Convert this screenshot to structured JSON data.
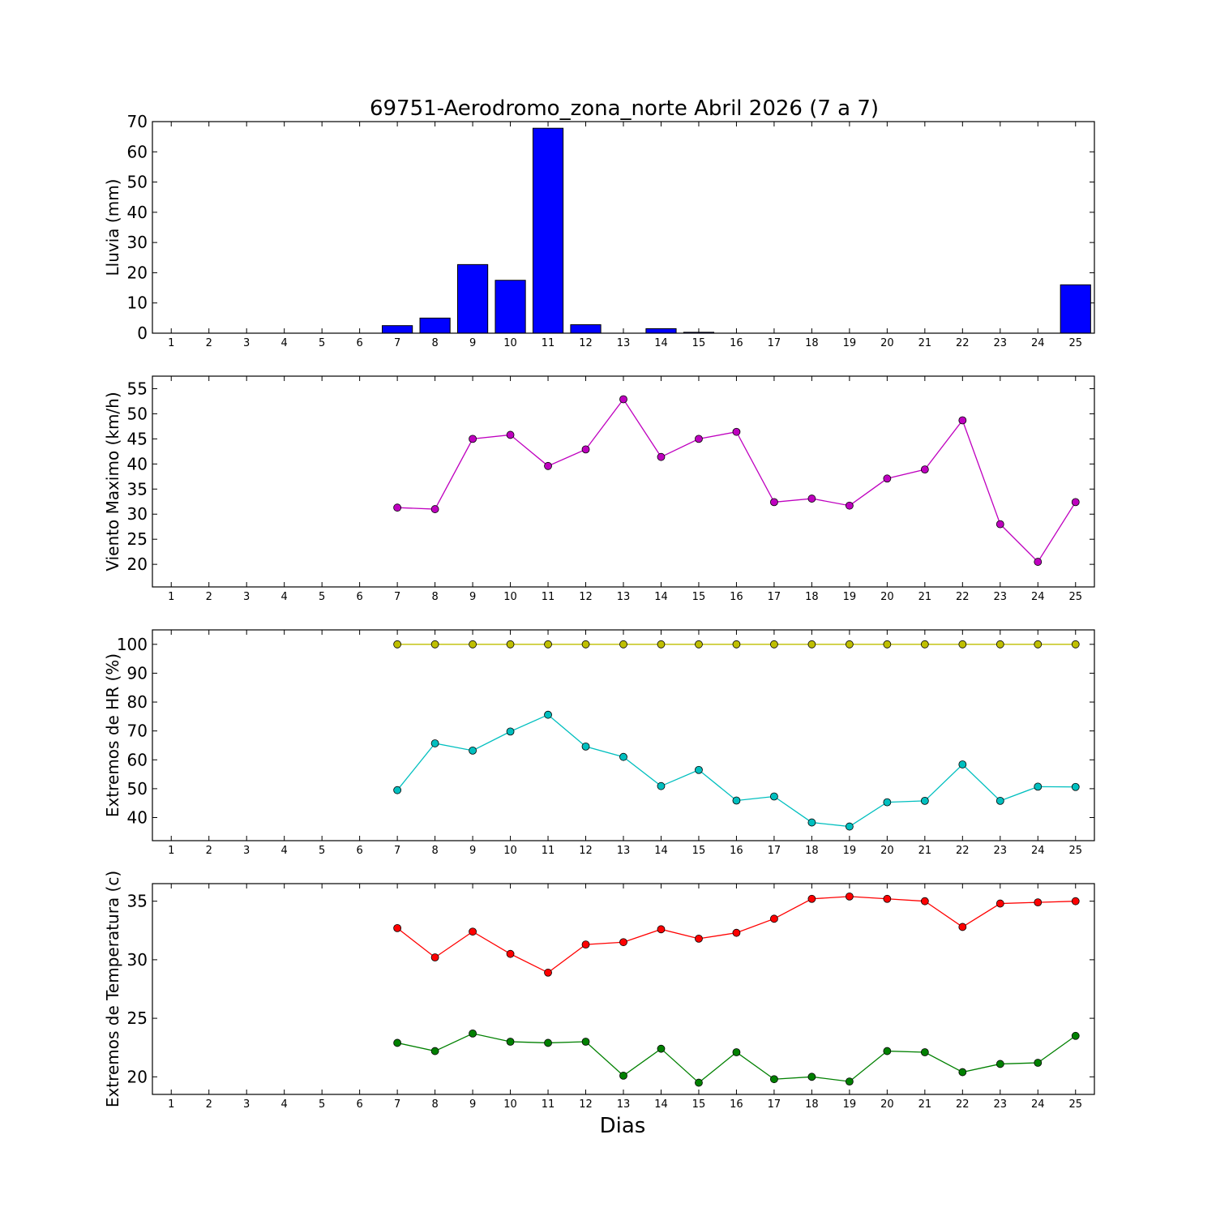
{
  "chart_data": [
    {
      "type": "bar",
      "title": "69751-Aerodromo_zona_norte Abril 2026  (7 a 7)",
      "ylabel": "Lluvia (mm)",
      "xlabel": "",
      "categories": [
        "1",
        "2",
        "3",
        "4",
        "5",
        "6",
        "7",
        "8",
        "9",
        "10",
        "11",
        "12",
        "13",
        "14",
        "15",
        "16",
        "17",
        "18",
        "19",
        "20",
        "21",
        "22",
        "23",
        "24",
        "25"
      ],
      "ylim": [
        0,
        70
      ],
      "yticks": [
        "0",
        "10",
        "20",
        "30",
        "40",
        "50",
        "60",
        "70"
      ],
      "series": [
        {
          "color": "#0000ff",
          "values": [
            0,
            0,
            0,
            0,
            0,
            0,
            2.5,
            5,
            22.7,
            17.5,
            67.8,
            2.8,
            0,
            1.5,
            0.3,
            0,
            0,
            0,
            0,
            0,
            0,
            0,
            0,
            0,
            16
          ]
        }
      ]
    },
    {
      "type": "line",
      "ylabel": "Viento Maximo (km/h)",
      "xlabel": "",
      "categories": [
        "1",
        "2",
        "3",
        "4",
        "5",
        "6",
        "7",
        "8",
        "9",
        "10",
        "11",
        "12",
        "13",
        "14",
        "15",
        "16",
        "17",
        "18",
        "19",
        "20",
        "21",
        "22",
        "23",
        "24",
        "25"
      ],
      "ylim": [
        15.5,
        57.5
      ],
      "yticks": [
        "20",
        "25",
        "30",
        "35",
        "40",
        "45",
        "50",
        "55"
      ],
      "series": [
        {
          "color": "#bf00bf",
          "values": [
            null,
            null,
            null,
            null,
            null,
            null,
            31.3,
            31,
            45,
            45.8,
            39.6,
            42.9,
            52.9,
            41.4,
            45,
            46.4,
            32.4,
            33.1,
            31.7,
            37.1,
            38.9,
            48.7,
            28,
            20.5,
            32.4
          ]
        }
      ]
    },
    {
      "type": "line",
      "ylabel": "Extremos de HR (%)",
      "xlabel": "",
      "categories": [
        "1",
        "2",
        "3",
        "4",
        "5",
        "6",
        "7",
        "8",
        "9",
        "10",
        "11",
        "12",
        "13",
        "14",
        "15",
        "16",
        "17",
        "18",
        "19",
        "20",
        "21",
        "22",
        "23",
        "24",
        "25"
      ],
      "ylim": [
        32,
        105
      ],
      "yticks": [
        "40",
        "50",
        "60",
        "70",
        "80",
        "90",
        "100"
      ],
      "series": [
        {
          "color": "#bfbf00",
          "values": [
            null,
            null,
            null,
            null,
            null,
            null,
            100,
            100,
            100,
            100,
            100,
            100,
            100,
            100,
            100,
            100,
            100,
            100,
            100,
            100,
            100,
            100,
            100,
            100,
            100
          ]
        },
        {
          "color": "#00bfbf",
          "values": [
            null,
            null,
            null,
            null,
            null,
            null,
            49.5,
            65.7,
            63.2,
            69.8,
            75.6,
            64.6,
            61,
            50.9,
            56.5,
            45.9,
            47.3,
            38.3,
            36.9,
            45.3,
            45.8,
            58.4,
            45.8,
            50.7,
            50.6
          ]
        }
      ]
    },
    {
      "type": "line",
      "ylabel": "Extremos de Temperatura (c)",
      "xlabel": "Dias",
      "categories": [
        "1",
        "2",
        "3",
        "4",
        "5",
        "6",
        "7",
        "8",
        "9",
        "10",
        "11",
        "12",
        "13",
        "14",
        "15",
        "16",
        "17",
        "18",
        "19",
        "20",
        "21",
        "22",
        "23",
        "24",
        "25"
      ],
      "ylim": [
        18.5,
        36.5
      ],
      "yticks": [
        "20",
        "25",
        "30",
        "35"
      ],
      "series": [
        {
          "color": "#ff0000",
          "values": [
            null,
            null,
            null,
            null,
            null,
            null,
            32.7,
            30.2,
            32.4,
            30.5,
            28.9,
            31.3,
            31.5,
            32.6,
            31.8,
            32.3,
            33.5,
            35.2,
            35.4,
            35.2,
            35,
            32.8,
            34.8,
            34.9,
            35
          ]
        },
        {
          "color": "#008000",
          "values": [
            null,
            null,
            null,
            null,
            null,
            null,
            22.9,
            22.2,
            23.7,
            23,
            22.9,
            23,
            20.1,
            22.4,
            19.5,
            22.1,
            19.8,
            20,
            19.6,
            22.2,
            22.1,
            20.4,
            21.1,
            21.2,
            23.5
          ]
        }
      ]
    }
  ]
}
